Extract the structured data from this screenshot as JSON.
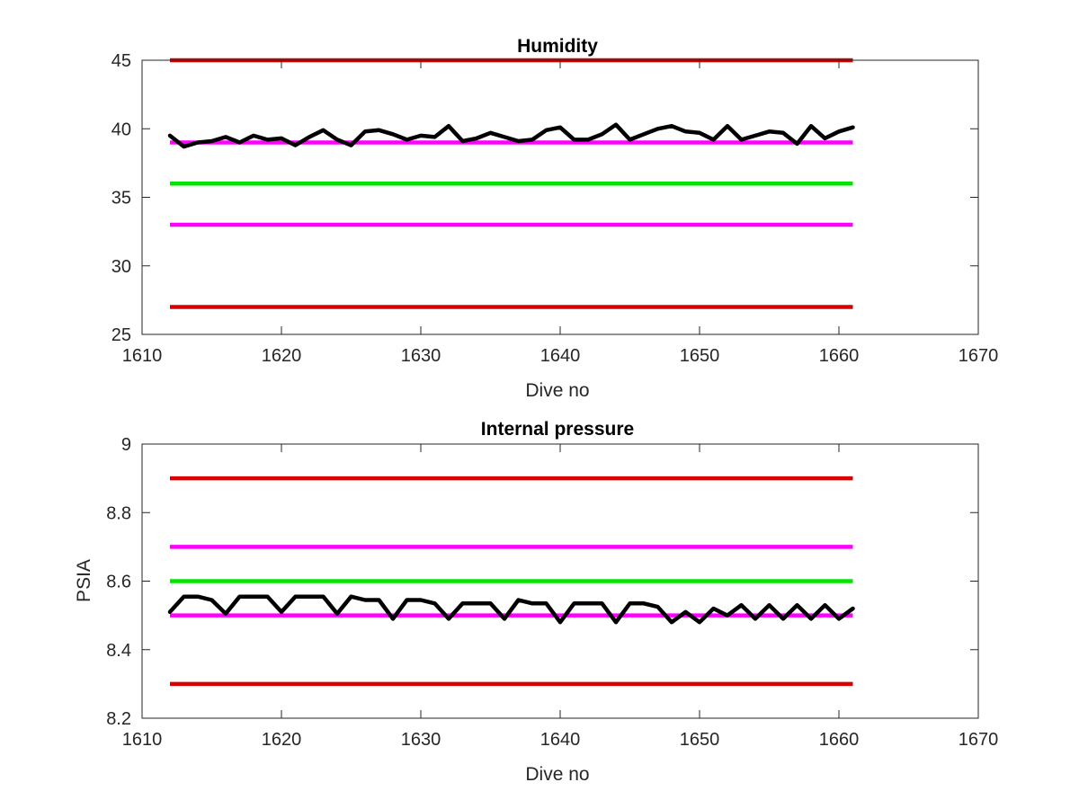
{
  "chart_data": [
    {
      "type": "line",
      "title": "Humidity",
      "xlabel": "Dive no",
      "ylabel": "",
      "xlim": [
        1610,
        1670
      ],
      "ylim": [
        25,
        45
      ],
      "xticks": [
        1610,
        1620,
        1630,
        1640,
        1650,
        1660,
        1670
      ],
      "yticks": [
        25,
        30,
        35,
        40,
        45
      ],
      "xtick_labels": [
        "1610",
        "1620",
        "1630",
        "1640",
        "1650",
        "1660",
        "1670"
      ],
      "ytick_labels": [
        "25",
        "30",
        "35",
        "40",
        "45"
      ],
      "grid": false,
      "threshold_lines": [
        {
          "y": 45,
          "x": [
            1612,
            1661
          ],
          "color": "#d90000"
        },
        {
          "y": 39,
          "x": [
            1612,
            1661
          ],
          "color": "#ff00ff"
        },
        {
          "y": 36,
          "x": [
            1612,
            1661
          ],
          "color": "#00e600"
        },
        {
          "y": 33,
          "x": [
            1612,
            1661
          ],
          "color": "#ff00ff"
        },
        {
          "y": 27,
          "x": [
            1612,
            1661
          ],
          "color": "#d90000"
        }
      ],
      "series": [
        {
          "color": "#000000",
          "x": [
            1612,
            1613,
            1614,
            1615,
            1616,
            1617,
            1618,
            1619,
            1620,
            1621,
            1622,
            1623,
            1624,
            1625,
            1626,
            1627,
            1628,
            1629,
            1630,
            1631,
            1632,
            1633,
            1634,
            1635,
            1636,
            1637,
            1638,
            1639,
            1640,
            1641,
            1642,
            1643,
            1644,
            1645,
            1646,
            1647,
            1648,
            1649,
            1650,
            1651,
            1652,
            1653,
            1654,
            1655,
            1656,
            1657,
            1658,
            1659,
            1660,
            1661
          ],
          "values": [
            39.5,
            38.7,
            39.0,
            39.1,
            39.4,
            39.0,
            39.5,
            39.2,
            39.3,
            38.8,
            39.4,
            39.9,
            39.2,
            38.8,
            39.8,
            39.9,
            39.6,
            39.2,
            39.5,
            39.4,
            40.2,
            39.1,
            39.3,
            39.7,
            39.4,
            39.1,
            39.2,
            39.9,
            40.1,
            39.2,
            39.2,
            39.6,
            40.3,
            39.2,
            39.6,
            40.0,
            40.2,
            39.8,
            39.7,
            39.2,
            40.2,
            39.2,
            39.5,
            39.8,
            39.7,
            38.9,
            40.2,
            39.3,
            39.8,
            40.1
          ]
        }
      ]
    },
    {
      "type": "line",
      "title": "Internal pressure",
      "xlabel": "Dive no",
      "ylabel": "PSIA",
      "xlim": [
        1610,
        1670
      ],
      "ylim": [
        8.2,
        9.0
      ],
      "xticks": [
        1610,
        1620,
        1630,
        1640,
        1650,
        1660,
        1670
      ],
      "yticks": [
        8.2,
        8.4,
        8.6,
        8.8,
        9.0
      ],
      "xtick_labels": [
        "1610",
        "1620",
        "1630",
        "1640",
        "1650",
        "1660",
        "1670"
      ],
      "ytick_labels": [
        "8.2",
        "8.4",
        "8.6",
        "8.8",
        "9"
      ],
      "grid": false,
      "threshold_lines": [
        {
          "y": 8.9,
          "x": [
            1612,
            1661
          ],
          "color": "#d90000"
        },
        {
          "y": 8.7,
          "x": [
            1612,
            1661
          ],
          "color": "#ff00ff"
        },
        {
          "y": 8.6,
          "x": [
            1612,
            1661
          ],
          "color": "#00e600"
        },
        {
          "y": 8.5,
          "x": [
            1612,
            1661
          ],
          "color": "#ff00ff"
        },
        {
          "y": 8.3,
          "x": [
            1612,
            1661
          ],
          "color": "#d90000"
        }
      ],
      "series": [
        {
          "color": "#000000",
          "x": [
            1612,
            1613,
            1614,
            1615,
            1616,
            1617,
            1618,
            1619,
            1620,
            1621,
            1622,
            1623,
            1624,
            1625,
            1626,
            1627,
            1628,
            1629,
            1630,
            1631,
            1632,
            1633,
            1634,
            1635,
            1636,
            1637,
            1638,
            1639,
            1640,
            1641,
            1642,
            1643,
            1644,
            1645,
            1646,
            1647,
            1648,
            1649,
            1650,
            1651,
            1652,
            1653,
            1654,
            1655,
            1656,
            1657,
            1658,
            1659,
            1660,
            1661
          ],
          "values": [
            8.51,
            8.555,
            8.555,
            8.545,
            8.505,
            8.555,
            8.555,
            8.555,
            8.51,
            8.555,
            8.555,
            8.555,
            8.505,
            8.555,
            8.545,
            8.545,
            8.49,
            8.545,
            8.545,
            8.535,
            8.49,
            8.535,
            8.535,
            8.535,
            8.49,
            8.545,
            8.535,
            8.535,
            8.48,
            8.535,
            8.535,
            8.535,
            8.48,
            8.535,
            8.535,
            8.525,
            8.48,
            8.51,
            8.48,
            8.52,
            8.5,
            8.53,
            8.49,
            8.53,
            8.49,
            8.53,
            8.49,
            8.53,
            8.49,
            8.52
          ]
        }
      ]
    }
  ]
}
